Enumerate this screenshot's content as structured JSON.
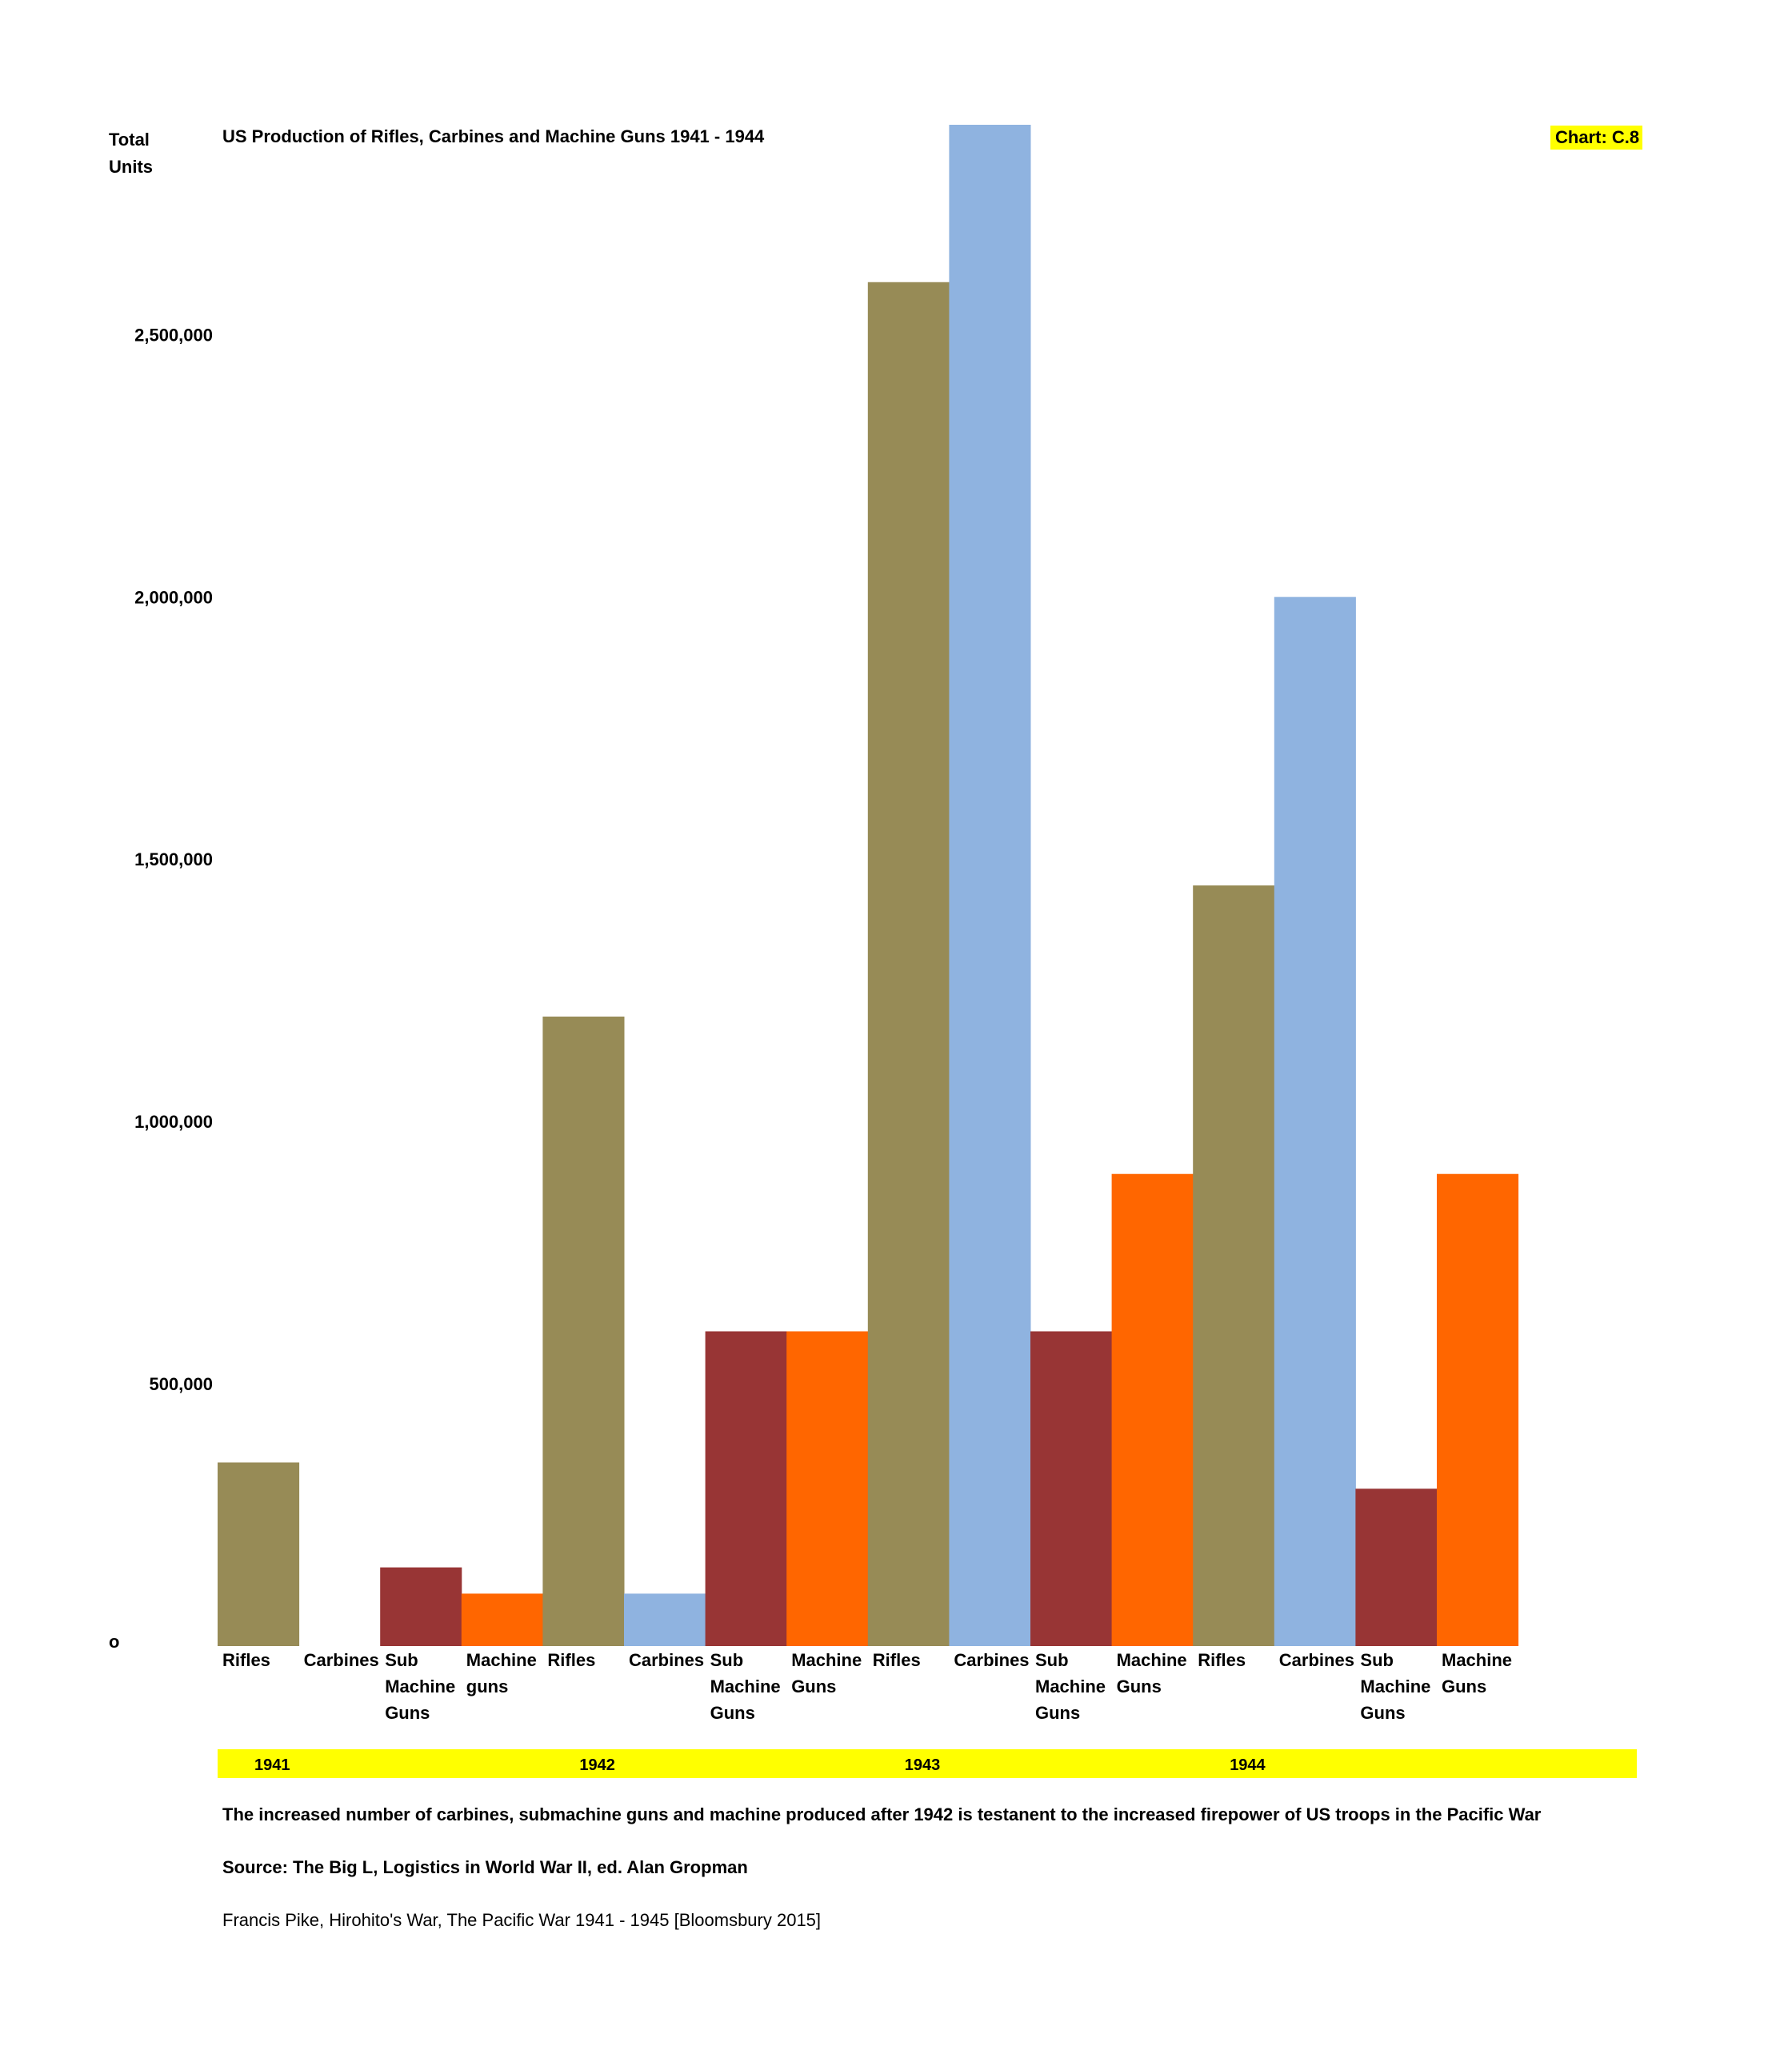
{
  "header": {
    "y_unit_label": "Total\nUnits",
    "title": "US Production of Rifles, Carbines and Machine Guns 1941 - 1944",
    "chart_code": "Chart: C.8"
  },
  "colors": {
    "Rifles": "#978b56",
    "Carbines": "#8fb3e0",
    "Sub Machine Guns": "#983535",
    "Machine guns": "#ff6600",
    "year_band": "#ffff00"
  },
  "chart_data": {
    "type": "bar",
    "title": "US Production of Rifles, Carbines and Machine Guns 1941 - 1944",
    "ylabel": "Total Units",
    "xlabel": "",
    "ylim": [
      0,
      2900000
    ],
    "y_ticks": [
      {
        "value": 0,
        "label": "o"
      },
      {
        "value": 500000,
        "label": "500,000"
      },
      {
        "value": 1000000,
        "label": "1,000,000"
      },
      {
        "value": 1500000,
        "label": "1,500,000"
      },
      {
        "value": 2000000,
        "label": "2,000,000"
      },
      {
        "value": 2500000,
        "label": "2,500,000"
      }
    ],
    "groups": [
      {
        "year": "1941",
        "bars": [
          {
            "series": "Rifles",
            "label": "Rifles",
            "value": 350000
          },
          {
            "series": "Carbines",
            "label": "Carbines",
            "value": 0
          },
          {
            "series": "Sub Machine Guns",
            "label": "Sub\nMachine\nGuns",
            "value": 150000
          },
          {
            "series": "Machine guns",
            "label": "Machine\nguns",
            "value": 100000
          }
        ]
      },
      {
        "year": "1942",
        "bars": [
          {
            "series": "Rifles",
            "label": "Rifles",
            "value": 1200000
          },
          {
            "series": "Carbines",
            "label": "Carbines",
            "value": 100000
          },
          {
            "series": "Sub Machine Guns",
            "label": "Sub\nMachine\nGuns",
            "value": 600000
          },
          {
            "series": "Machine guns",
            "label": "Machine\nGuns",
            "value": 600000
          }
        ]
      },
      {
        "year": "1943",
        "bars": [
          {
            "series": "Rifles",
            "label": "Rifles",
            "value": 2600000
          },
          {
            "series": "Carbines",
            "label": "Carbines",
            "value": 2900000
          },
          {
            "series": "Sub Machine Guns",
            "label": "Sub\nMachine\nGuns",
            "value": 600000
          },
          {
            "series": "Machine guns",
            "label": "Machine\nGuns",
            "value": 900000
          }
        ]
      },
      {
        "year": "1944",
        "bars": [
          {
            "series": "Rifles",
            "label": "Rifles",
            "value": 1450000
          },
          {
            "series": "Carbines",
            "label": "Carbines",
            "value": 2000000
          },
          {
            "series": "Sub Machine Guns",
            "label": "Sub\nMachine\nGuns",
            "value": 300000
          },
          {
            "series": "Machine guns",
            "label": "Machine\nGuns",
            "value": 900000
          }
        ]
      }
    ]
  },
  "footer": {
    "note": "The  increased number of carbines, submachine guns and machine produced after 1942 is testanent to the increased firepower of US troops in the Pacific War",
    "source": "Source: The Big L, Logistics in World War II, ed. Alan Gropman",
    "citation": "Francis Pike, Hirohito's War, The Pacific War 1941 - 1945 [Bloomsbury 2015]"
  }
}
